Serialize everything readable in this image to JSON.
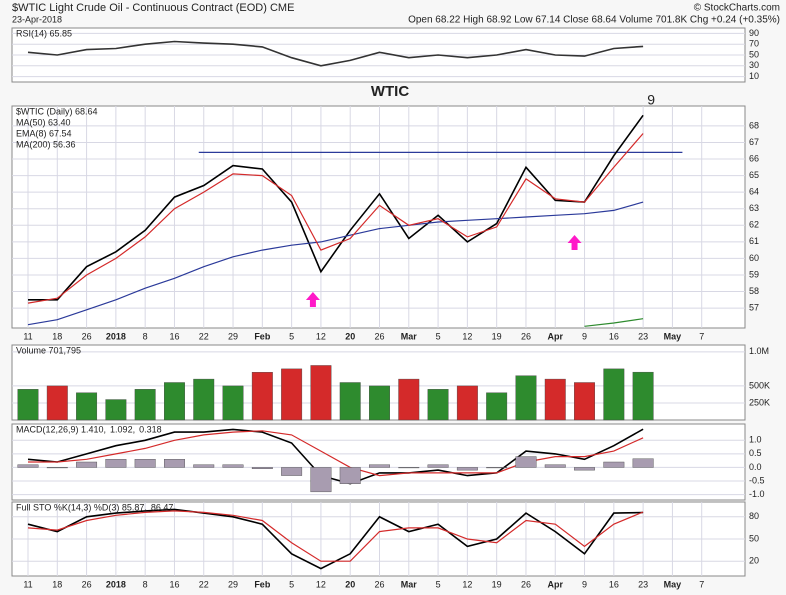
{
  "header": {
    "symbol_line": "$WTIC Light Crude Oil - Continuous Contract (EOD) CME",
    "date": "23-Apr-2018",
    "quote": "Open 68.22 High 68.92 Low 67.14 Close 68.64 Volume 701.8K Chg +0.24 (+0.35%)",
    "credit": "© StockCharts.com"
  },
  "chart_data": [
    {
      "type": "line",
      "series": [
        {
          "name": "RSI(14) 65.85",
          "color": "#333333",
          "values": [
            55,
            50,
            60,
            62,
            70,
            75,
            72,
            70,
            65,
            45,
            30,
            40,
            55,
            45,
            50,
            45,
            50,
            60,
            50,
            48,
            62,
            65.85,
            null,
            null
          ]
        }
      ],
      "ylim": [
        0,
        100
      ],
      "yticks": [
        10,
        30,
        50,
        70,
        90
      ],
      "grid": true
    },
    {
      "type": "line",
      "title": "WTIC",
      "annotation": "9",
      "categories": [
        "11",
        "18",
        "26",
        "2018",
        "8",
        "16",
        "22",
        "29",
        "Feb",
        "5",
        "12",
        "20",
        "26",
        "Mar",
        "5",
        "12",
        "19",
        "26",
        "Apr",
        "9",
        "16",
        "23",
        "May",
        "7"
      ],
      "series": [
        {
          "name": "$WTIC (Daily) 68.64",
          "color": "#000000",
          "values": [
            57.5,
            57.5,
            59.5,
            60.4,
            61.7,
            63.7,
            64.4,
            65.6,
            65.4,
            63.4,
            59.2,
            61.7,
            63.9,
            61.2,
            62.6,
            61.0,
            62.1,
            65.5,
            63.5,
            63.4,
            66.2,
            68.64,
            null,
            null
          ]
        },
        {
          "name": "MA(50) 63.40",
          "color": "#2b3a9a",
          "values": [
            56.0,
            56.3,
            56.9,
            57.5,
            58.2,
            58.8,
            59.5,
            60.1,
            60.5,
            60.8,
            61.0,
            61.4,
            61.8,
            62.0,
            62.2,
            62.3,
            62.4,
            62.5,
            62.6,
            62.7,
            62.9,
            63.4,
            null,
            null
          ]
        },
        {
          "name": "EMA(8) 67.54",
          "color": "#d42a2a",
          "values": [
            57.3,
            57.6,
            59.0,
            60.0,
            61.3,
            63.0,
            64.0,
            65.1,
            65.0,
            63.8,
            60.5,
            61.2,
            63.2,
            62.0,
            62.4,
            61.3,
            61.9,
            64.8,
            63.6,
            63.4,
            65.5,
            67.54,
            null,
            null
          ]
        },
        {
          "name": "MA(200) 56.36",
          "color": "#2e8b2e",
          "values": [
            null,
            null,
            null,
            null,
            null,
            null,
            null,
            null,
            null,
            null,
            null,
            null,
            null,
            null,
            null,
            null,
            null,
            null,
            null,
            55.9,
            56.1,
            56.36,
            null,
            null
          ]
        }
      ],
      "hlines": [
        66.4
      ],
      "hline_color": "#2b3a9a",
      "ylim": [
        55.8,
        69.2
      ],
      "yticks": [
        57,
        58,
        59,
        60,
        61,
        62,
        63,
        64,
        65,
        66,
        67,
        68
      ],
      "grid": true
    },
    {
      "type": "bar",
      "series": [
        {
          "name": "Volume 701,795",
          "values": [
            450000,
            500000,
            400000,
            300000,
            450000,
            550000,
            600000,
            500000,
            700000,
            750000,
            800000,
            550000,
            500000,
            600000,
            450000,
            500000,
            400000,
            650000,
            600000,
            550000,
            750000,
            701795,
            null,
            null
          ],
          "colors": [
            "#2e8b2e",
            "#d42a2a",
            "#2e8b2e",
            "#2e8b2e",
            "#2e8b2e",
            "#2e8b2e",
            "#2e8b2e",
            "#2e8b2e",
            "#d42a2a",
            "#d42a2a",
            "#d42a2a",
            "#2e8b2e",
            "#2e8b2e",
            "#d42a2a",
            "#2e8b2e",
            "#d42a2a",
            "#2e8b2e",
            "#2e8b2e",
            "#d42a2a",
            "#d42a2a",
            "#2e8b2e",
            "#2e8b2e",
            null,
            null
          ]
        }
      ],
      "ylim": [
        0,
        1100000
      ],
      "yticks": [
        {
          "value": 250000,
          "label": "250K"
        },
        {
          "value": 500000,
          "label": "500K"
        },
        {
          "value": 1000000,
          "label": "1.0M"
        }
      ],
      "grid": true
    },
    {
      "type": "line",
      "series": [
        {
          "name": "MACD(12,26,9) 1.410,",
          "color": "#000000",
          "values": [
            0.3,
            0.2,
            0.5,
            0.8,
            1.0,
            1.3,
            1.3,
            1.4,
            1.3,
            0.9,
            -0.3,
            -0.6,
            -0.2,
            -0.2,
            -0.1,
            -0.3,
            -0.2,
            0.6,
            0.5,
            0.3,
            0.8,
            1.41,
            null,
            null
          ]
        },
        {
          "name": "1.092,",
          "color": "#d42a2a",
          "values": [
            0.2,
            0.2,
            0.3,
            0.5,
            0.7,
            1.0,
            1.2,
            1.3,
            1.35,
            1.2,
            0.6,
            0.0,
            -0.3,
            -0.2,
            -0.2,
            -0.2,
            -0.2,
            0.2,
            0.4,
            0.4,
            0.6,
            1.092,
            null,
            null
          ]
        },
        {
          "name": "0.318",
          "color": "#a89cb0",
          "kind": "bar",
          "values": [
            0.1,
            0.0,
            0.2,
            0.3,
            0.3,
            0.3,
            0.1,
            0.1,
            -0.05,
            -0.3,
            -0.9,
            -0.6,
            0.1,
            0.0,
            0.1,
            -0.1,
            0.0,
            0.4,
            0.1,
            -0.1,
            0.2,
            0.318,
            null,
            null
          ]
        }
      ],
      "ylim": [
        -1.2,
        1.6
      ],
      "yticks": [
        {
          "value": -1,
          "label": "-1.0"
        },
        -0.5,
        {
          "value": 0,
          "label": "0.0"
        },
        0.5,
        {
          "value": 1,
          "label": "1.0"
        }
      ],
      "grid": true
    },
    {
      "type": "line",
      "categories": [
        "11",
        "18",
        "26",
        "2018",
        "8",
        "16",
        "22",
        "29",
        "Feb",
        "5",
        "12",
        "20",
        "26",
        "Mar",
        "5",
        "12",
        "19",
        "26",
        "Apr",
        "9",
        "16",
        "23",
        "May",
        "7"
      ],
      "series": [
        {
          "name": "Full STO %K(14,3) %D(3) 85.87,",
          "color": "#000000",
          "values": [
            70,
            60,
            80,
            85,
            88,
            90,
            85,
            80,
            70,
            30,
            10,
            30,
            80,
            60,
            70,
            40,
            50,
            85,
            60,
            30,
            85,
            85.87,
            null,
            null
          ]
        },
        {
          "name": "86.47",
          "color": "#d42a2a",
          "values": [
            65,
            62,
            75,
            82,
            86,
            88,
            86,
            82,
            75,
            45,
            20,
            20,
            60,
            65,
            65,
            50,
            45,
            75,
            70,
            40,
            70,
            86.47,
            null,
            null
          ]
        }
      ],
      "ylim": [
        0,
        100
      ],
      "yticks": [
        20,
        50,
        80
      ],
      "grid": true
    }
  ]
}
